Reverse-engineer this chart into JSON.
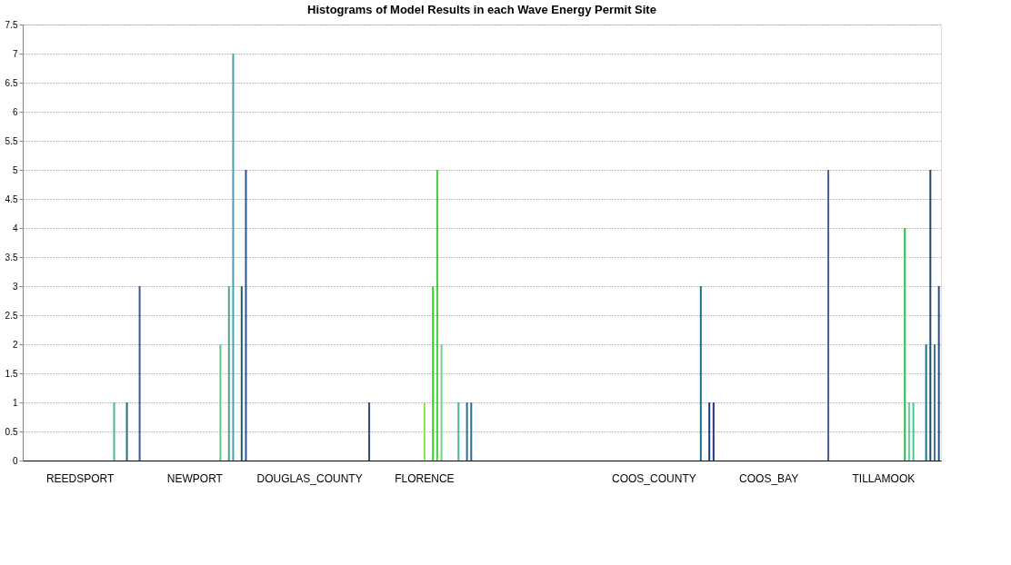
{
  "chart_data": {
    "type": "bar",
    "title": "Histograms of Model Results in each Wave Energy Permit Site",
    "categories": [
      null,
      null,
      null,
      null,
      null,
      null,
      null,
      null,
      null,
      null,
      null,
      null,
      null,
      "REEDSPORT",
      null,
      null,
      null,
      null,
      null,
      null,
      null,
      null,
      null,
      null,
      null,
      null,
      null,
      null,
      null,
      null,
      null,
      null,
      null,
      null,
      null,
      null,
      null,
      null,
      null,
      null,
      "NEWPORT",
      null,
      null,
      null,
      null,
      null,
      null,
      null,
      null,
      null,
      null,
      null,
      null,
      null,
      null,
      null,
      null,
      null,
      null,
      null,
      null,
      null,
      null,
      null,
      null,
      null,
      null,
      "DOUGLAS_COUNTY",
      null,
      null,
      null,
      null,
      null,
      null,
      null,
      null,
      null,
      null,
      null,
      null,
      null,
      null,
      null,
      null,
      null,
      null,
      null,
      null,
      null,
      null,
      null,
      null,
      null,
      null,
      "FLORENCE",
      null,
      null,
      null,
      null,
      null,
      null,
      null,
      null,
      null,
      null,
      null,
      null,
      null,
      null,
      null,
      null,
      null,
      null,
      null,
      null,
      null,
      null,
      null,
      null,
      null,
      null,
      null,
      null,
      null,
      null,
      null,
      null,
      null,
      null,
      null,
      null,
      null,
      null,
      null,
      null,
      null,
      null,
      null,
      null,
      null,
      null,
      null,
      null,
      null,
      null,
      null,
      null,
      null,
      "COOS_COUNTY",
      null,
      null,
      null,
      null,
      null,
      null,
      null,
      null,
      null,
      null,
      null,
      null,
      null,
      null,
      null,
      null,
      null,
      null,
      null,
      null,
      null,
      null,
      null,
      null,
      null,
      null,
      "COOS_BAY",
      null,
      null,
      null,
      null,
      null,
      null,
      null,
      null,
      null,
      null,
      null,
      null,
      null,
      null,
      null,
      null,
      null,
      null,
      null,
      null,
      null,
      null,
      null,
      null,
      null,
      null,
      "TILLAMOOK",
      null,
      null,
      null,
      null,
      null,
      null,
      null,
      null,
      null,
      null,
      null,
      null,
      null
    ],
    "values": [
      null,
      null,
      null,
      null,
      null,
      null,
      null,
      null,
      null,
      null,
      null,
      null,
      null,
      null,
      null,
      null,
      null,
      null,
      null,
      null,
      null,
      1,
      null,
      null,
      1,
      null,
      null,
      3,
      null,
      null,
      null,
      null,
      null,
      null,
      null,
      null,
      null,
      null,
      null,
      null,
      null,
      null,
      null,
      null,
      null,
      null,
      2,
      null,
      3,
      7,
      null,
      3,
      5,
      null,
      null,
      null,
      null,
      null,
      null,
      null,
      null,
      null,
      null,
      null,
      null,
      null,
      null,
      null,
      null,
      null,
      null,
      null,
      null,
      null,
      null,
      null,
      null,
      null,
      null,
      null,
      null,
      1,
      null,
      null,
      null,
      null,
      null,
      null,
      null,
      null,
      null,
      null,
      null,
      null,
      1,
      null,
      3,
      5,
      2,
      null,
      null,
      null,
      1,
      null,
      1,
      1,
      null,
      null,
      null,
      null,
      null,
      null,
      null,
      null,
      null,
      null,
      null,
      null,
      null,
      null,
      null,
      null,
      null,
      null,
      null,
      null,
      null,
      null,
      null,
      null,
      null,
      null,
      null,
      null,
      null,
      null,
      null,
      null,
      null,
      null,
      null,
      null,
      null,
      null,
      null,
      null,
      null,
      null,
      null,
      null,
      null,
      null,
      null,
      null,
      null,
      null,
      null,
      null,
      null,
      3,
      null,
      1,
      1,
      null,
      null,
      null,
      null,
      null,
      null,
      null,
      null,
      null,
      null,
      null,
      null,
      null,
      null,
      null,
      null,
      null,
      null,
      null,
      null,
      null,
      null,
      null,
      null,
      null,
      null,
      5,
      null,
      null,
      null,
      null,
      null,
      null,
      null,
      null,
      null,
      null,
      null,
      null,
      null,
      null,
      null,
      null,
      null,
      4,
      1,
      1,
      null,
      null,
      2,
      5,
      2,
      3
    ],
    "colors": [
      null,
      null,
      null,
      null,
      null,
      null,
      null,
      null,
      null,
      null,
      null,
      null,
      null,
      null,
      null,
      null,
      null,
      null,
      null,
      null,
      null,
      "#4cb88a",
      null,
      null,
      "#1a6e8a",
      null,
      null,
      "#3a5a9a",
      null,
      null,
      null,
      null,
      null,
      null,
      null,
      null,
      null,
      null,
      null,
      null,
      null,
      null,
      null,
      null,
      null,
      null,
      "#5ac88a",
      null,
      "#4aaa8a",
      "#4aa0a8",
      null,
      "#1a5f80",
      "#2f5590",
      null,
      null,
      null,
      null,
      null,
      null,
      null,
      null,
      null,
      null,
      null,
      null,
      null,
      null,
      null,
      null,
      null,
      null,
      null,
      null,
      null,
      null,
      null,
      null,
      null,
      null,
      null,
      null,
      "#2a4a80",
      null,
      null,
      null,
      null,
      null,
      null,
      null,
      null,
      null,
      null,
      null,
      null,
      "#90e040",
      null,
      "#30d020",
      "#40d040",
      "#70d080",
      null,
      null,
      null,
      "#50b0a0",
      null,
      "#2a7090",
      "#2a6a90",
      null,
      null,
      null,
      null,
      null,
      null,
      null,
      null,
      null,
      null,
      null,
      null,
      null,
      null,
      null,
      null,
      null,
      null,
      null,
      null,
      null,
      null,
      null,
      null,
      null,
      null,
      null,
      null,
      null,
      null,
      null,
      null,
      null,
      null,
      null,
      null,
      null,
      null,
      null,
      null,
      null,
      null,
      null,
      null,
      null,
      null,
      null,
      null,
      null,
      null,
      null,
      null,
      null,
      "#1a6e8a",
      null,
      "#203a80",
      "#203a80",
      null,
      null,
      null,
      null,
      null,
      null,
      null,
      null,
      null,
      null,
      null,
      null,
      null,
      null,
      null,
      null,
      null,
      null,
      null,
      null,
      null,
      null,
      null,
      null,
      null,
      null,
      "#4a5a90",
      null,
      null,
      null,
      null,
      null,
      null,
      null,
      null,
      null,
      null,
      null,
      null,
      null,
      null,
      null,
      null,
      null,
      "#20c040",
      "#60d0a0",
      "#50c090",
      null,
      null,
      "#1a7090",
      "#1a4a70",
      "#3a7a9a",
      "#2a4a80"
    ],
    "ylim": [
      0,
      7.5
    ],
    "yticks": [
      0,
      0.5,
      1,
      1.5,
      2,
      2.5,
      3,
      3.5,
      4,
      4.5,
      5,
      5.5,
      6,
      6.5,
      7,
      7.5
    ],
    "grid": "y"
  }
}
